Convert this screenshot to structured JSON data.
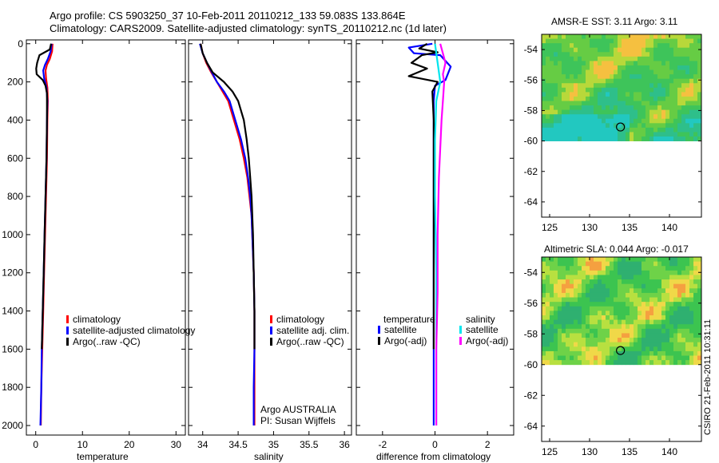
{
  "figure": {
    "title_line1": "Argo profile: CS 5903250_37 10-Feb-2011 20110212_133 59.083S 133.864E",
    "title_line2": "Climatology: CARS2009. Satellite-adjusted climatology: synTS_20110212.nc (1d later)",
    "credit": "CSIRO 21-Feb-2011 10:31:11",
    "colors": {
      "red": "#ff0000",
      "blue": "#0000ff",
      "black": "#000000",
      "cyan": "#00e5ee",
      "magenta": "#ff00ff"
    }
  },
  "chart_data": [
    {
      "type": "line",
      "title": "",
      "xlabel": "temperature",
      "ylabel": "",
      "xlim": [
        -2,
        32
      ],
      "ylim": [
        2050,
        -20
      ],
      "xticks": [
        0,
        10,
        20,
        30
      ],
      "yticks": [
        0,
        200,
        400,
        600,
        800,
        1000,
        1200,
        1400,
        1600,
        1800,
        2000
      ],
      "legend": [
        "climatology",
        "satellite-adjusted climatology",
        "Argo(..raw -QC)"
      ],
      "series": [
        {
          "name": "climatology",
          "color": "red",
          "points": [
            [
              3.6,
              0
            ],
            [
              3.5,
              40
            ],
            [
              3.0,
              80
            ],
            [
              2.4,
              110
            ],
            [
              2.1,
              140
            ],
            [
              2.2,
              180
            ],
            [
              2.5,
              230
            ],
            [
              2.6,
              300
            ],
            [
              2.5,
              400
            ],
            [
              2.4,
              600
            ],
            [
              2.2,
              800
            ],
            [
              2.0,
              1000
            ],
            [
              1.8,
              1200
            ],
            [
              1.6,
              1400
            ],
            [
              1.4,
              1600
            ],
            [
              1.2,
              1800
            ],
            [
              1.1,
              2000
            ]
          ]
        },
        {
          "name": "satellite-adjusted climatology",
          "color": "blue",
          "points": [
            [
              3.4,
              0
            ],
            [
              3.2,
              40
            ],
            [
              2.6,
              80
            ],
            [
              2.0,
              110
            ],
            [
              1.6,
              140
            ],
            [
              1.8,
              180
            ],
            [
              2.3,
              230
            ],
            [
              2.5,
              300
            ],
            [
              2.4,
              400
            ],
            [
              2.3,
              600
            ],
            [
              2.1,
              800
            ],
            [
              1.9,
              1000
            ],
            [
              1.7,
              1200
            ],
            [
              1.5,
              1400
            ],
            [
              1.3,
              1600
            ],
            [
              1.2,
              1800
            ],
            [
              1.0,
              2000
            ]
          ]
        },
        {
          "name": "Argo(..raw -QC)",
          "color": "black",
          "points": [
            [
              3.3,
              0
            ],
            [
              3.0,
              30
            ],
            [
              0.8,
              60
            ],
            [
              0.3,
              100
            ],
            [
              0.1,
              130
            ],
            [
              0.2,
              160
            ],
            [
              1.5,
              190
            ],
            [
              2.1,
              220
            ],
            [
              2.4,
              260
            ],
            [
              2.4,
              400
            ],
            [
              2.3,
              600
            ],
            [
              2.1,
              800
            ],
            [
              1.9,
              1000
            ],
            [
              1.7,
              1200
            ],
            [
              1.5,
              1400
            ],
            [
              1.3,
              1600
            ]
          ]
        }
      ]
    },
    {
      "type": "line",
      "title": "",
      "xlabel": "salinity",
      "ylabel": "",
      "xlim": [
        33.8,
        36.1
      ],
      "ylim": [
        2050,
        -20
      ],
      "xticks": [
        34,
        34.5,
        35,
        35.5,
        36
      ],
      "yticks": [],
      "legend": [
        "climatology",
        "satellite adj. clim.",
        "Argo(..raw -QC)"
      ],
      "annotation": [
        "Argo AUSTRALIA",
        "PI: Susan Wijffels"
      ],
      "series": [
        {
          "name": "climatology",
          "color": "red",
          "points": [
            [
              33.97,
              0
            ],
            [
              34.0,
              50
            ],
            [
              34.05,
              100
            ],
            [
              34.12,
              150
            ],
            [
              34.2,
              200
            ],
            [
              34.28,
              250
            ],
            [
              34.36,
              300
            ],
            [
              34.44,
              400
            ],
            [
              34.52,
              500
            ],
            [
              34.58,
              600
            ],
            [
              34.63,
              700
            ],
            [
              34.66,
              800
            ],
            [
              34.69,
              900
            ],
            [
              34.7,
              1000
            ],
            [
              34.72,
              1200
            ],
            [
              34.73,
              1400
            ],
            [
              34.73,
              1600
            ],
            [
              34.73,
              1800
            ],
            [
              34.73,
              2000
            ]
          ]
        },
        {
          "name": "satellite adj. clim.",
          "color": "blue",
          "points": [
            [
              33.96,
              0
            ],
            [
              34.0,
              50
            ],
            [
              34.06,
              100
            ],
            [
              34.13,
              150
            ],
            [
              34.2,
              200
            ],
            [
              34.3,
              250
            ],
            [
              34.38,
              300
            ],
            [
              34.46,
              400
            ],
            [
              34.54,
              500
            ],
            [
              34.6,
              600
            ],
            [
              34.64,
              700
            ],
            [
              34.67,
              800
            ],
            [
              34.69,
              900
            ],
            [
              34.7,
              1000
            ],
            [
              34.72,
              1200
            ],
            [
              34.73,
              1400
            ],
            [
              34.73,
              1600
            ],
            [
              34.72,
              1800
            ],
            [
              34.72,
              2000
            ]
          ]
        },
        {
          "name": "Argo(..raw -QC)",
          "color": "black",
          "points": [
            [
              33.97,
              0
            ],
            [
              34.0,
              50
            ],
            [
              34.06,
              100
            ],
            [
              34.14,
              150
            ],
            [
              34.3,
              200
            ],
            [
              34.42,
              250
            ],
            [
              34.5,
              300
            ],
            [
              34.58,
              400
            ],
            [
              34.62,
              500
            ],
            [
              34.65,
              600
            ],
            [
              34.67,
              700
            ],
            [
              34.69,
              800
            ],
            [
              34.7,
              900
            ],
            [
              34.71,
              1000
            ],
            [
              34.72,
              1200
            ],
            [
              34.73,
              1400
            ],
            [
              34.73,
              1600
            ]
          ]
        }
      ]
    },
    {
      "type": "line",
      "title": "",
      "xlabel": "difference from climatology",
      "ylabel": "",
      "xlim": [
        -3,
        3
      ],
      "ylim": [
        2050,
        -20
      ],
      "xticks": [
        -2,
        0,
        2
      ],
      "yticks": [],
      "legend_temperature": {
        "heading": "temperature",
        "items": [
          "satellite",
          "Argo(-adj)"
        ]
      },
      "legend_salinity": {
        "heading": "salinity",
        "items": [
          "satellite",
          "Argo(-adj)"
        ]
      },
      "series": [
        {
          "name": "temperature satellite",
          "color": "blue",
          "points": [
            [
              -0.1,
              0
            ],
            [
              -1.0,
              20
            ],
            [
              -0.8,
              50
            ],
            [
              0.2,
              60
            ],
            [
              0.6,
              120
            ],
            [
              0.4,
              190
            ],
            [
              0.0,
              220
            ],
            [
              -0.05,
              300
            ],
            [
              -0.05,
              600
            ],
            [
              -0.05,
              1000
            ],
            [
              -0.05,
              1400
            ],
            [
              -0.05,
              1800
            ],
            [
              -0.05,
              2000
            ]
          ]
        },
        {
          "name": "temperature Argo(-adj)",
          "color": "black",
          "points": [
            [
              -0.3,
              0
            ],
            [
              -0.6,
              25
            ],
            [
              0.1,
              45
            ],
            [
              -0.5,
              60
            ],
            [
              -0.9,
              100
            ],
            [
              -0.3,
              130
            ],
            [
              -1.0,
              170
            ],
            [
              0.1,
              200
            ],
            [
              -0.1,
              250
            ],
            [
              -0.05,
              400
            ],
            [
              -0.05,
              800
            ],
            [
              -0.05,
              1200
            ],
            [
              -0.05,
              1600
            ]
          ]
        },
        {
          "name": "salinity satellite",
          "color": "cyan",
          "points": [
            [
              0.0,
              0
            ],
            [
              0.1,
              100
            ],
            [
              0.2,
              200
            ],
            [
              0.05,
              300
            ],
            [
              0.0,
              500
            ],
            [
              0.0,
              800
            ],
            [
              0.05,
              1200
            ],
            [
              0.05,
              1600
            ],
            [
              0.05,
              2000
            ]
          ]
        },
        {
          "name": "salinity Argo(-adj)",
          "color": "magenta",
          "points": [
            [
              0.2,
              0
            ],
            [
              0.4,
              100
            ],
            [
              0.3,
              160
            ],
            [
              0.35,
              200
            ],
            [
              0.3,
              300
            ],
            [
              0.25,
              400
            ],
            [
              0.15,
              700
            ],
            [
              0.1,
              1000
            ],
            [
              0.1,
              1300
            ],
            [
              0.05,
              1600
            ],
            [
              0.05,
              2000
            ]
          ]
        }
      ]
    },
    {
      "type": "heatmap",
      "title": "AMSR-E SST: 3.11  Argo: 3.11",
      "xlim": [
        124,
        144
      ],
      "ylim": [
        -65,
        -53
      ],
      "xticks": [
        125,
        130,
        135,
        140
      ],
      "yticks": [
        -54,
        -56,
        -58,
        -60,
        -62,
        -64
      ],
      "data_lat_min": -60,
      "marker": {
        "lon": 133.864,
        "lat": -59.083
      }
    },
    {
      "type": "heatmap",
      "title": "Altimetric SLA: 0.044  Argo: -0.017",
      "xlim": [
        124,
        144
      ],
      "ylim": [
        -65,
        -53
      ],
      "xticks": [
        125,
        130,
        135,
        140
      ],
      "yticks": [
        -54,
        -56,
        -58,
        -60,
        -62,
        -64
      ],
      "data_lat_min": -60,
      "marker": {
        "lon": 133.864,
        "lat": -59.083
      }
    }
  ]
}
